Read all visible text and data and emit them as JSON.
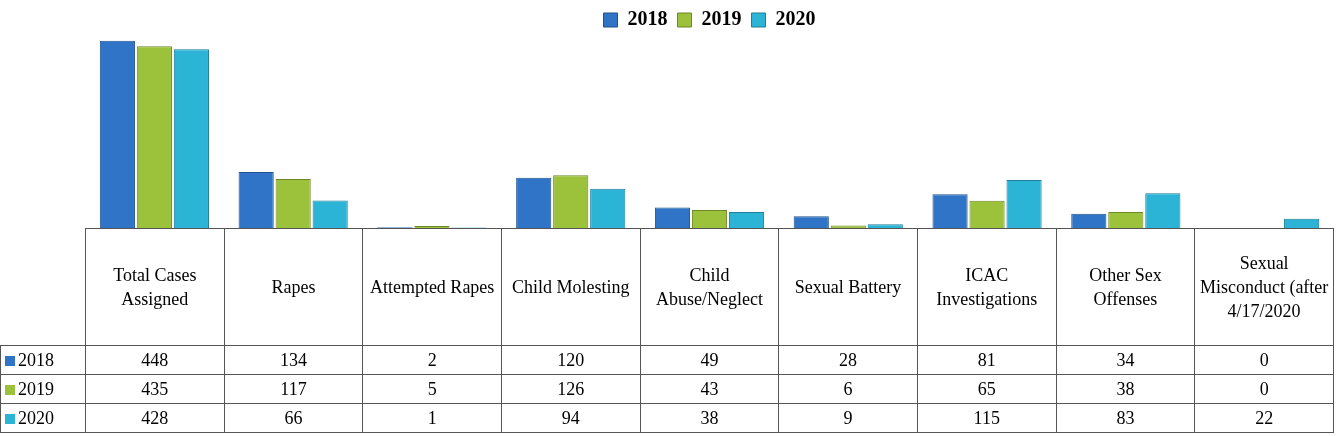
{
  "chart_data": {
    "type": "bar",
    "categories": [
      "Total Cases Assigned",
      "Rapes",
      "Attempted Rapes",
      "Child Molesting",
      "Child Abuse/Neglect",
      "Sexual Battery",
      "ICAC Investigations",
      "Other Sex Offenses",
      "Sexual Misconduct (after 4/17/2020"
    ],
    "series": [
      {
        "name": "2018",
        "color": "#2f74c6",
        "values": [
          448,
          134,
          2,
          120,
          49,
          28,
          81,
          34,
          0
        ]
      },
      {
        "name": "2019",
        "color": "#9cc13a",
        "values": [
          435,
          117,
          5,
          126,
          43,
          6,
          65,
          38,
          0
        ]
      },
      {
        "name": "2020",
        "color": "#2bb4d6",
        "values": [
          428,
          66,
          1,
          94,
          38,
          9,
          115,
          83,
          22
        ]
      }
    ],
    "legend": "top",
    "data_labels": true
  }
}
